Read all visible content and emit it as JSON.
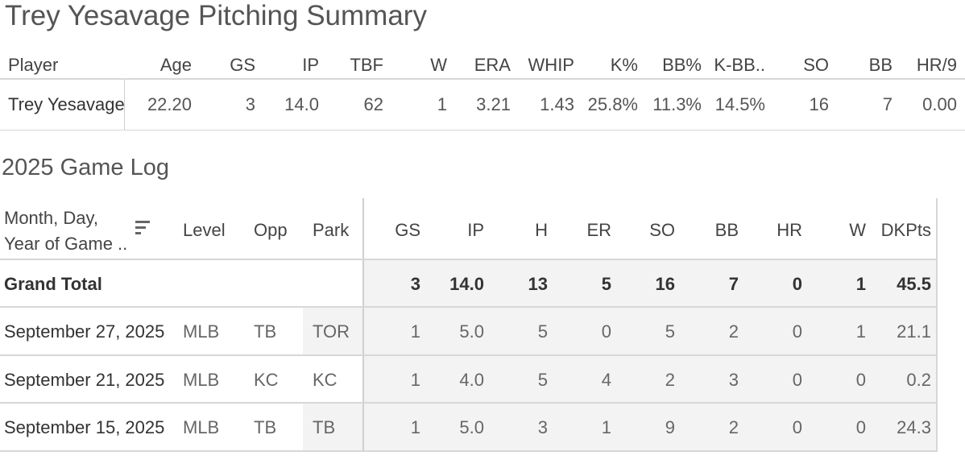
{
  "title": "Trey Yesavage Pitching Summary",
  "summary": {
    "headers": [
      "Player",
      "Age",
      "GS",
      "IP",
      "TBF",
      "W",
      "ERA",
      "WHIP",
      "K%",
      "BB%",
      "K-BB..",
      "SO",
      "BB",
      "HR/9"
    ],
    "row": [
      "Trey Yesavage",
      "22.20",
      "3",
      "14.0",
      "62",
      "1",
      "3.21",
      "1.43",
      "25.8%",
      "11.3%",
      "14.5%",
      "16",
      "7",
      "0.00"
    ]
  },
  "game_log": {
    "title": "2025 Game Log",
    "headers": {
      "date_line1": "Month, Day,",
      "date_line2": "Year of Game ..",
      "cols": [
        "Level",
        "Opp",
        "Park",
        "GS",
        "IP",
        "H",
        "ER",
        "SO",
        "BB",
        "HR",
        "W",
        "DKPts"
      ]
    },
    "sort_icon": "sort-descending-icon",
    "total": {
      "label": "Grand Total",
      "values": [
        "3",
        "14.0",
        "13",
        "5",
        "16",
        "7",
        "0",
        "1",
        "45.5"
      ]
    },
    "rows": [
      {
        "date": "September 27, 2025",
        "level": "MLB",
        "opp": "TB",
        "park": "TOR",
        "values": [
          "1",
          "5.0",
          "5",
          "0",
          "5",
          "2",
          "0",
          "1",
          "21.1"
        ]
      },
      {
        "date": "September 21, 2025",
        "level": "MLB",
        "opp": "KC",
        "park": "KC",
        "values": [
          "1",
          "4.0",
          "5",
          "4",
          "2",
          "3",
          "0",
          "0",
          "0.2"
        ]
      },
      {
        "date": "September 15, 2025",
        "level": "MLB",
        "opp": "TB",
        "park": "TB",
        "values": [
          "1",
          "5.0",
          "3",
          "1",
          "9",
          "2",
          "0",
          "0",
          "24.3"
        ]
      }
    ]
  },
  "colors": {
    "text": "#333333",
    "muted": "#555555",
    "shade": "#f3f3f3",
    "rule": "#d7d7d7"
  }
}
